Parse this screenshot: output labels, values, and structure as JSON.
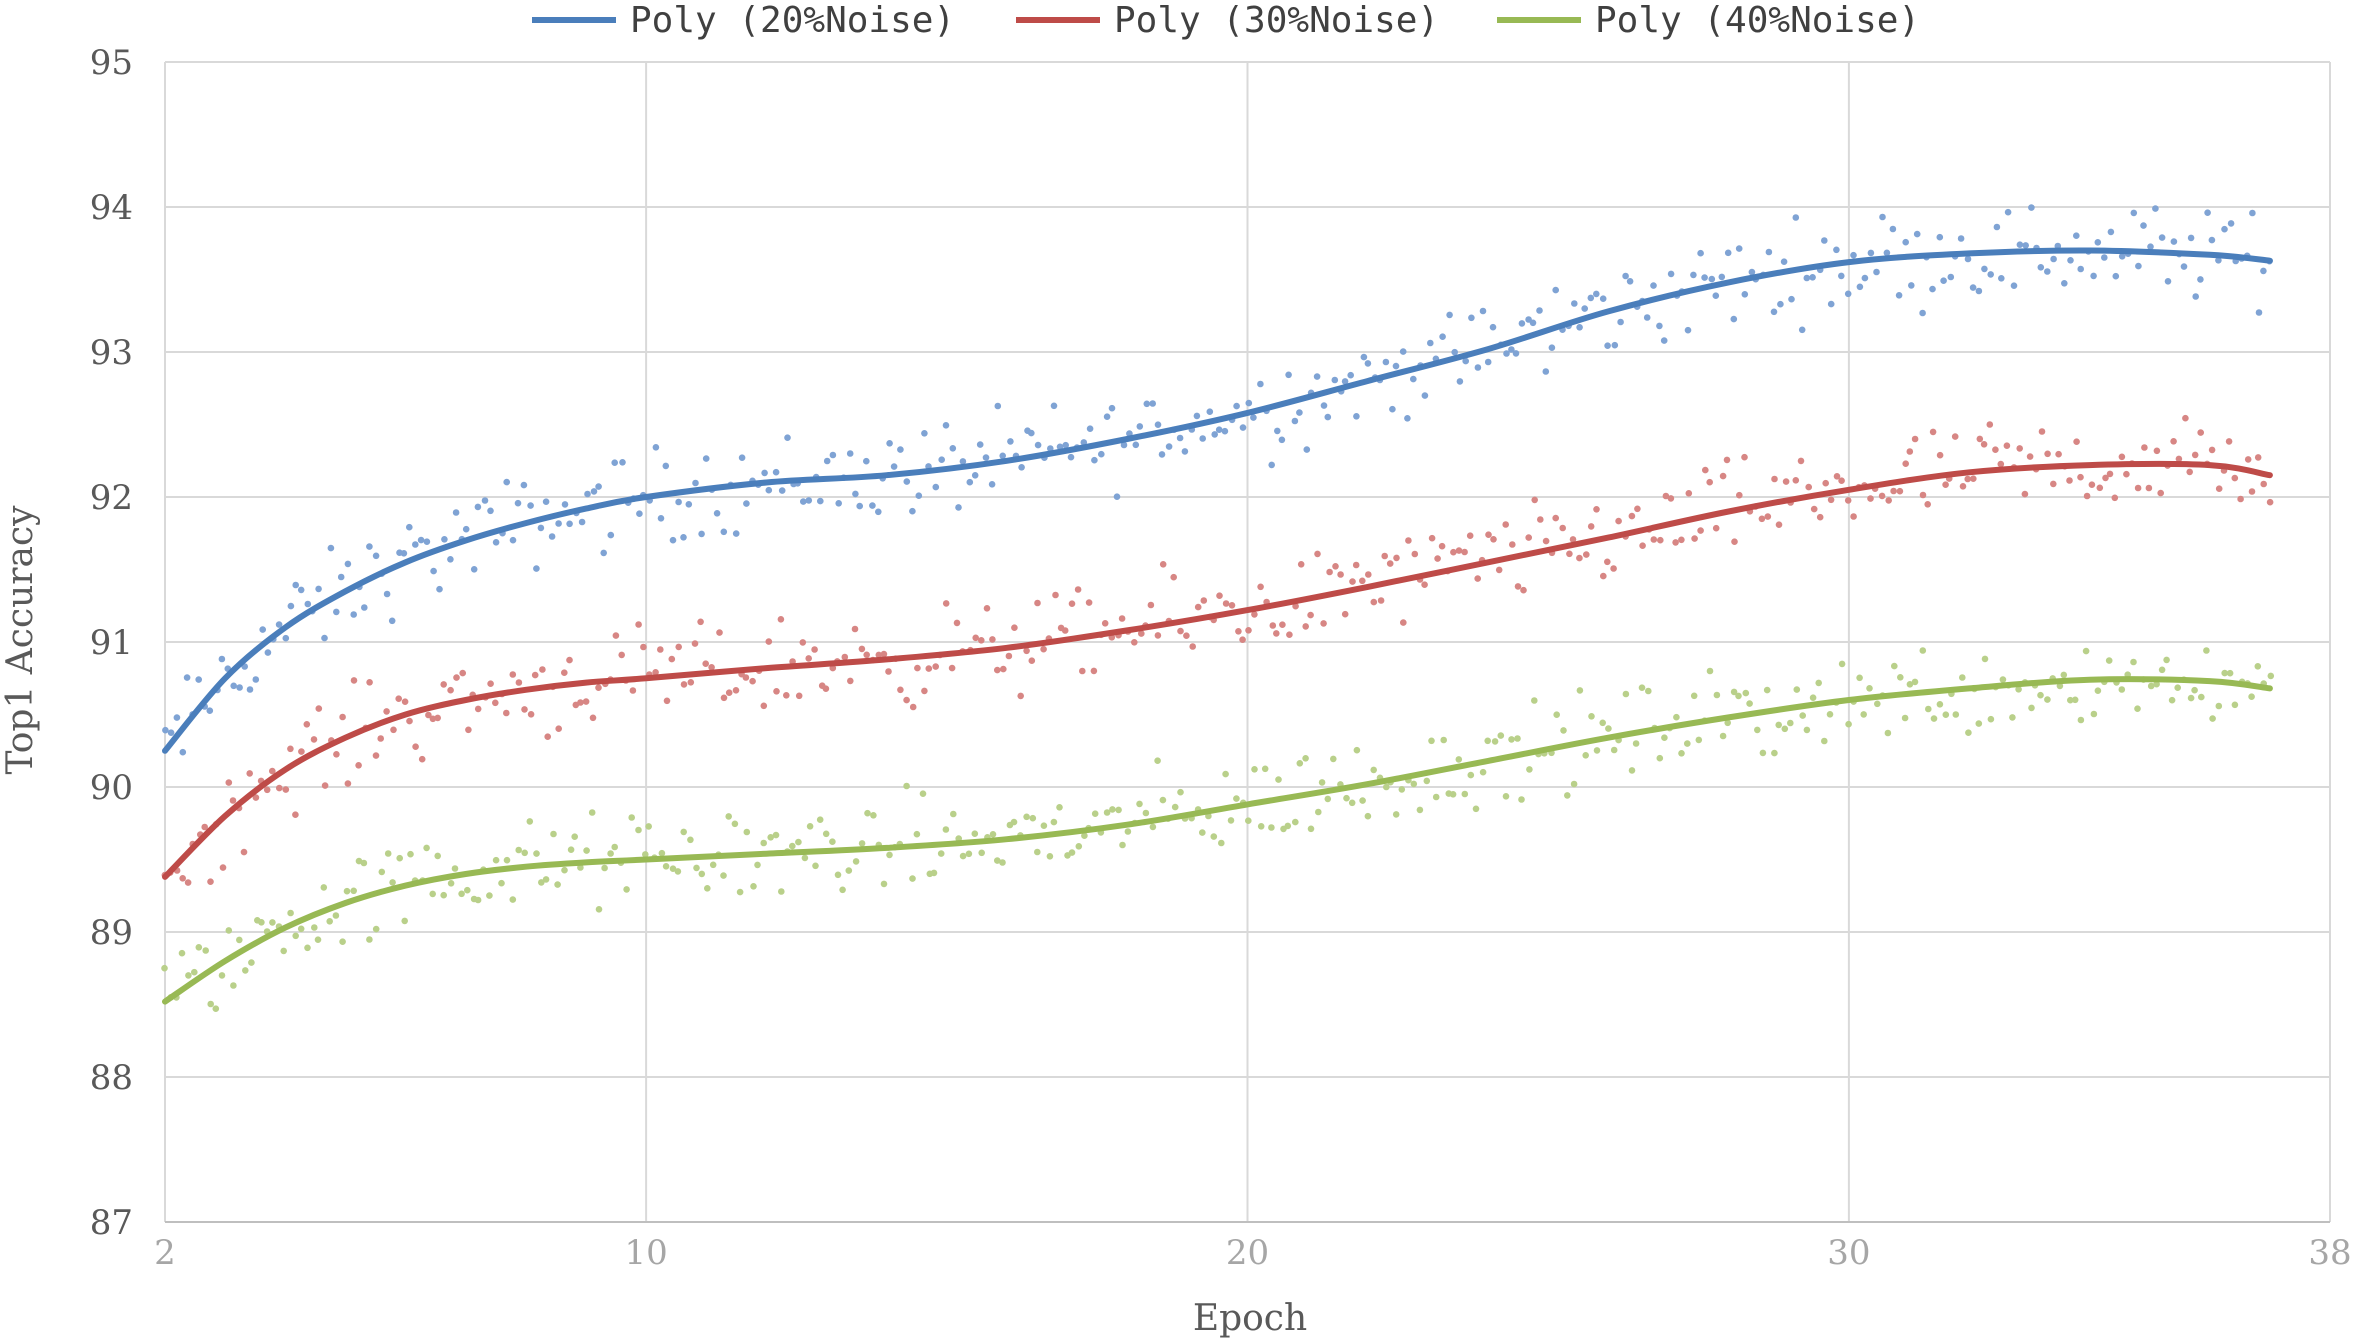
{
  "chart_data": {
    "type": "scatter",
    "xlabel": "Epoch",
    "ylabel": "Top1 Accuracy",
    "xlim": [
      2,
      38
    ],
    "ylim": [
      87,
      95
    ],
    "xticks": [
      2,
      10,
      20,
      30,
      38
    ],
    "yticks": [
      87,
      88,
      89,
      90,
      91,
      92,
      93,
      94,
      95
    ],
    "grid": true,
    "legend_position": "top",
    "series": [
      {
        "name": "Poly (20%Noise)",
        "color": "#4a7ebb",
        "point_color": "#7fa3d4",
        "trend": [
          [
            2,
            90.25
          ],
          [
            3,
            90.75
          ],
          [
            4,
            91.1
          ],
          [
            5,
            91.35
          ],
          [
            6,
            91.55
          ],
          [
            7,
            91.7
          ],
          [
            8,
            91.82
          ],
          [
            9,
            91.92
          ],
          [
            10,
            92.0
          ],
          [
            12,
            92.1
          ],
          [
            14,
            92.15
          ],
          [
            16,
            92.25
          ],
          [
            18,
            92.4
          ],
          [
            20,
            92.58
          ],
          [
            22,
            92.8
          ],
          [
            24,
            93.02
          ],
          [
            26,
            93.28
          ],
          [
            28,
            93.48
          ],
          [
            30,
            93.62
          ],
          [
            32,
            93.68
          ],
          [
            34,
            93.7
          ],
          [
            36,
            93.67
          ],
          [
            37,
            93.63
          ]
        ]
      },
      {
        "name": "Poly (30%Noise)",
        "color": "#be4b48",
        "point_color": "#d78684",
        "trend": [
          [
            2,
            89.38
          ],
          [
            3,
            89.8
          ],
          [
            4,
            90.12
          ],
          [
            5,
            90.34
          ],
          [
            6,
            90.5
          ],
          [
            7,
            90.6
          ],
          [
            8,
            90.67
          ],
          [
            9,
            90.72
          ],
          [
            10,
            90.75
          ],
          [
            12,
            90.82
          ],
          [
            14,
            90.88
          ],
          [
            16,
            90.96
          ],
          [
            18,
            91.08
          ],
          [
            20,
            91.22
          ],
          [
            22,
            91.38
          ],
          [
            24,
            91.55
          ],
          [
            26,
            91.72
          ],
          [
            28,
            91.9
          ],
          [
            30,
            92.05
          ],
          [
            32,
            92.17
          ],
          [
            34,
            92.22
          ],
          [
            36,
            92.22
          ],
          [
            37,
            92.15
          ]
        ]
      },
      {
        "name": "Poly (40%Noise)",
        "color": "#98b954",
        "point_color": "#b9d08a",
        "trend": [
          [
            2,
            88.52
          ],
          [
            3,
            88.8
          ],
          [
            4,
            89.03
          ],
          [
            5,
            89.2
          ],
          [
            6,
            89.32
          ],
          [
            7,
            89.4
          ],
          [
            8,
            89.45
          ],
          [
            9,
            89.48
          ],
          [
            10,
            89.5
          ],
          [
            12,
            89.54
          ],
          [
            14,
            89.58
          ],
          [
            16,
            89.64
          ],
          [
            18,
            89.74
          ],
          [
            20,
            89.88
          ],
          [
            22,
            90.02
          ],
          [
            24,
            90.18
          ],
          [
            26,
            90.34
          ],
          [
            28,
            90.48
          ],
          [
            30,
            90.6
          ],
          [
            32,
            90.68
          ],
          [
            34,
            90.74
          ],
          [
            36,
            90.73
          ],
          [
            37,
            90.68
          ]
        ]
      }
    ]
  }
}
